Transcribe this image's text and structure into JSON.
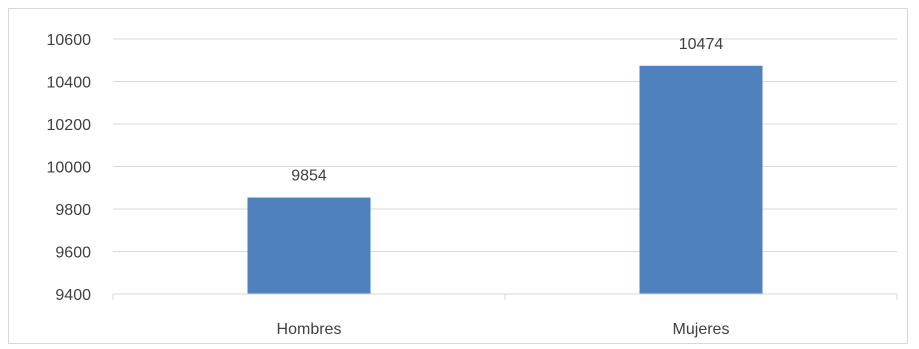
{
  "chart_data": {
    "type": "bar",
    "title": "",
    "xlabel": "",
    "ylabel": "",
    "categories": [
      "Hombres",
      "Mujeres"
    ],
    "values": [
      9854,
      10474
    ],
    "data_labels": [
      "9854",
      "10474"
    ],
    "ylim": [
      9400,
      10600
    ],
    "yticks": [
      9400,
      9600,
      9800,
      10000,
      10200,
      10400,
      10600
    ],
    "ytick_labels": [
      "9400",
      "9600",
      "9800",
      "10000",
      "10200",
      "10400",
      "10600"
    ],
    "grid": true,
    "legend": "none",
    "bar_color": "#4f81bd",
    "grid_color": "#d9d9d9",
    "text_color": "#404040"
  }
}
